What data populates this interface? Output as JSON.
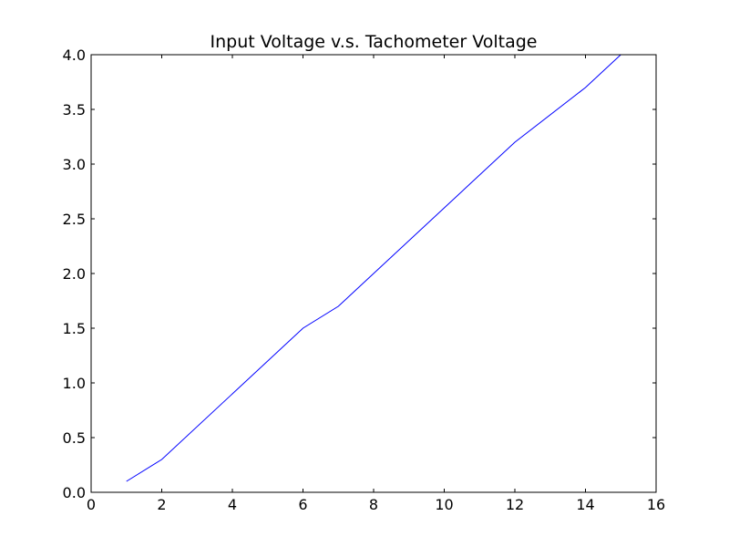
{
  "chart_data": {
    "type": "line",
    "title": "Input Voltage v.s. Tachometer Voltage",
    "xlabel": "",
    "ylabel": "",
    "xlim": [
      0,
      16
    ],
    "ylim": [
      0,
      4.0
    ],
    "x_ticks": [
      0,
      2,
      4,
      6,
      8,
      10,
      12,
      14,
      16
    ],
    "x_tick_labels": [
      "0",
      "2",
      "4",
      "6",
      "8",
      "10",
      "12",
      "14",
      "16"
    ],
    "y_ticks": [
      0,
      0.5,
      1.0,
      1.5,
      2.0,
      2.5,
      3.0,
      3.5,
      4.0
    ],
    "y_tick_labels": [
      "0.0",
      "0.5",
      "1.0",
      "1.5",
      "2.0",
      "2.5",
      "3.0",
      "3.5",
      "4.0"
    ],
    "grid": false,
    "series": [
      {
        "color": "#0000ff",
        "x": [
          1,
          2,
          6,
          7,
          12,
          14,
          15
        ],
        "y": [
          0.1,
          0.3,
          1.5,
          1.7,
          3.2,
          3.7,
          4.0
        ]
      }
    ]
  }
}
